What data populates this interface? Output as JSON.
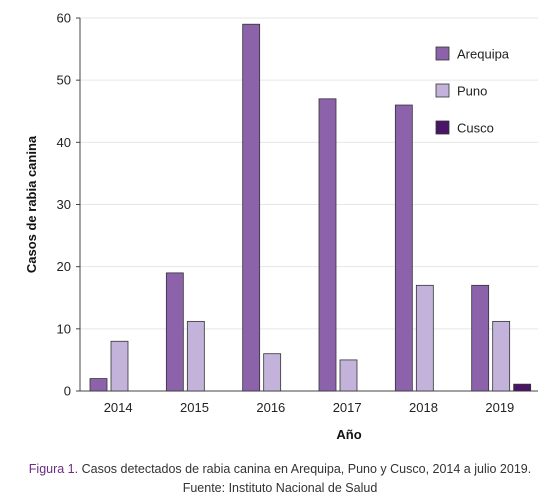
{
  "chart_data": {
    "type": "bar",
    "categories": [
      "2014",
      "2015",
      "2016",
      "2017",
      "2018",
      "2019"
    ],
    "series": [
      {
        "name": "Arequipa",
        "values": [
          2,
          19,
          59,
          47,
          46,
          17
        ],
        "color": "#8c63aa"
      },
      {
        "name": "Puno",
        "values": [
          8,
          11.2,
          6,
          5,
          17,
          11.2
        ],
        "color": "#c3b2d9"
      },
      {
        "name": "Cusco",
        "values": [
          0,
          0,
          0,
          0,
          0,
          1.1
        ],
        "color": "#4a1566"
      }
    ],
    "ylim": [
      0,
      60
    ],
    "yticks": [
      0,
      10,
      20,
      30,
      40,
      50,
      60
    ],
    "xlabel": "Año",
    "ylabel": "Casos de rabia canina",
    "legend_position": "top-right",
    "grid": false
  },
  "caption": {
    "label": "Figura 1.",
    "text": " Casos detectados de rabia canina en Arequipa, Puno y Cusco, 2014 a julio 2019.",
    "source": "Fuente: Instituto Nacional de Salud"
  }
}
